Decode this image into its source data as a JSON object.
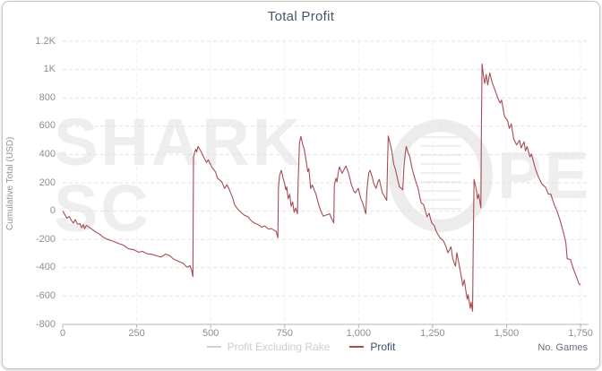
{
  "title": "Total Profit",
  "ylabel": "Cumulative Total (USD)",
  "axis_note": "No. Games",
  "watermark": {
    "part1": "SHARK SC",
    "part2": "PE"
  },
  "legend": [
    {
      "label": "Profit Excluding Rake",
      "color": "#d2d2d2",
      "text_color": "#c9ced4",
      "disabled": true
    },
    {
      "label": "Profit",
      "color": "#a64d52",
      "text_color": "#3d4e66",
      "disabled": false
    }
  ],
  "chart_data": {
    "type": "line",
    "title": "Total Profit",
    "xlabel": "No. Games",
    "ylabel": "Cumulative Total (USD)",
    "xlim": [
      0,
      1777
    ],
    "ylim": [
      -800,
      1200
    ],
    "grid": true,
    "legend_position": "bottom",
    "x_tick_values": [
      0,
      250,
      500,
      750,
      1000,
      1250,
      1500,
      1750
    ],
    "x_tick_labels": [
      "0",
      "250",
      "500",
      "750",
      "1,000",
      "1,250",
      "1,500",
      "1,750"
    ],
    "y_tick_values": [
      1200,
      1000,
      800,
      600,
      400,
      200,
      0,
      -200,
      -400,
      -600,
      -800
    ],
    "y_tick_labels": [
      "1.2K",
      "1K",
      "800",
      "600",
      "400",
      "200",
      "0",
      "-200",
      "-400",
      "-600",
      "-800"
    ],
    "series": [
      {
        "name": "Profit Excluding Rake",
        "color": "#d2d2d2",
        "visible": false,
        "points": []
      },
      {
        "name": "Profit",
        "color": "#a64d52",
        "visible": true,
        "points": [
          [
            0,
            0
          ],
          [
            6,
            -20
          ],
          [
            14,
            -50
          ],
          [
            22,
            -38
          ],
          [
            30,
            -68
          ],
          [
            36,
            -85
          ],
          [
            42,
            -60
          ],
          [
            50,
            -92
          ],
          [
            58,
            -88
          ],
          [
            64,
            -118
          ],
          [
            70,
            -95
          ],
          [
            74,
            -125
          ],
          [
            80,
            -100
          ],
          [
            88,
            -112
          ],
          [
            100,
            -130
          ],
          [
            112,
            -148
          ],
          [
            124,
            -162
          ],
          [
            138,
            -186
          ],
          [
            152,
            -200
          ],
          [
            170,
            -212
          ],
          [
            188,
            -228
          ],
          [
            205,
            -240
          ],
          [
            222,
            -266
          ],
          [
            240,
            -272
          ],
          [
            256,
            -290
          ],
          [
            270,
            -284
          ],
          [
            286,
            -302
          ],
          [
            302,
            -305
          ],
          [
            316,
            -315
          ],
          [
            332,
            -324
          ],
          [
            348,
            -303
          ],
          [
            362,
            -315
          ],
          [
            374,
            -338
          ],
          [
            392,
            -355
          ],
          [
            407,
            -368
          ],
          [
            420,
            -396
          ],
          [
            430,
            -384
          ],
          [
            436,
            -418
          ],
          [
            440,
            -462
          ],
          [
            442,
            380
          ],
          [
            446,
            415
          ],
          [
            450,
            438
          ],
          [
            453,
            417
          ],
          [
            457,
            457
          ],
          [
            466,
            428
          ],
          [
            478,
            374
          ],
          [
            486,
            344
          ],
          [
            492,
            362
          ],
          [
            504,
            310
          ],
          [
            516,
            278
          ],
          [
            523,
            233
          ],
          [
            538,
            206
          ],
          [
            547,
            160
          ],
          [
            555,
            187
          ],
          [
            564,
            147
          ],
          [
            574,
            96
          ],
          [
            581,
            44
          ],
          [
            590,
            18
          ],
          [
            601,
            -6
          ],
          [
            613,
            -28
          ],
          [
            626,
            -40
          ],
          [
            637,
            -68
          ],
          [
            648,
            -84
          ],
          [
            660,
            -95
          ],
          [
            672,
            -114
          ],
          [
            683,
            -104
          ],
          [
            694,
            -126
          ],
          [
            705,
            -124
          ],
          [
            714,
            -134
          ],
          [
            721,
            -142
          ],
          [
            727,
            -188
          ],
          [
            729,
            160
          ],
          [
            733,
            255
          ],
          [
            739,
            288
          ],
          [
            745,
            230
          ],
          [
            749,
            203
          ],
          [
            754,
            150
          ],
          [
            757,
            171
          ],
          [
            762,
            87
          ],
          [
            767,
            119
          ],
          [
            772,
            34
          ],
          [
            777,
            65
          ],
          [
            782,
            -8
          ],
          [
            787,
            23
          ],
          [
            793,
            -19
          ],
          [
            796,
            220
          ],
          [
            800,
            480
          ],
          [
            805,
            527
          ],
          [
            811,
            470
          ],
          [
            816,
            438
          ],
          [
            823,
            348
          ],
          [
            828,
            280
          ],
          [
            832,
            300
          ],
          [
            838,
            160
          ],
          [
            843,
            185
          ],
          [
            849,
            154
          ],
          [
            856,
            118
          ],
          [
            863,
            60
          ],
          [
            871,
            8
          ],
          [
            880,
            -35
          ],
          [
            890,
            -28
          ],
          [
            902,
            -19
          ],
          [
            909,
            -55
          ],
          [
            916,
            -83
          ],
          [
            918,
            180
          ],
          [
            923,
            232
          ],
          [
            927,
            206
          ],
          [
            931,
            268
          ],
          [
            935,
            313
          ],
          [
            944,
            267
          ],
          [
            950,
            290
          ],
          [
            957,
            319
          ],
          [
            966,
            268
          ],
          [
            975,
            190
          ],
          [
            984,
            140
          ],
          [
            989,
            129
          ],
          [
            999,
            161
          ],
          [
            1007,
            92
          ],
          [
            1014,
            55
          ],
          [
            1024,
            -19
          ],
          [
            1028,
            150
          ],
          [
            1034,
            270
          ],
          [
            1039,
            288
          ],
          [
            1045,
            248
          ],
          [
            1052,
            190
          ],
          [
            1059,
            161
          ],
          [
            1066,
            210
          ],
          [
            1070,
            224
          ],
          [
            1080,
            129
          ],
          [
            1088,
            102
          ],
          [
            1095,
            76
          ],
          [
            1098,
            360
          ],
          [
            1100,
            531
          ],
          [
            1107,
            470
          ],
          [
            1112,
            425
          ],
          [
            1119,
            330
          ],
          [
            1124,
            298
          ],
          [
            1131,
            232
          ],
          [
            1138,
            171
          ],
          [
            1144,
            162
          ],
          [
            1149,
            150
          ],
          [
            1153,
            310
          ],
          [
            1157,
            395
          ],
          [
            1161,
            457
          ],
          [
            1168,
            408
          ],
          [
            1173,
            383
          ],
          [
            1181,
            298
          ],
          [
            1191,
            224
          ],
          [
            1201,
            161
          ],
          [
            1211,
            60
          ],
          [
            1220,
            44
          ],
          [
            1231,
            -40
          ],
          [
            1238,
            -15
          ],
          [
            1247,
            -83
          ],
          [
            1256,
            -103
          ],
          [
            1261,
            -135
          ],
          [
            1266,
            -157
          ],
          [
            1275,
            -188
          ],
          [
            1287,
            -210
          ],
          [
            1295,
            -250
          ],
          [
            1302,
            -294
          ],
          [
            1312,
            -252
          ],
          [
            1318,
            -337
          ],
          [
            1327,
            -389
          ],
          [
            1332,
            -294
          ],
          [
            1340,
            -380
          ],
          [
            1347,
            -464
          ],
          [
            1352,
            -527
          ],
          [
            1357,
            -484
          ],
          [
            1362,
            -559
          ],
          [
            1367,
            -622
          ],
          [
            1370,
            -590
          ],
          [
            1377,
            -686
          ],
          [
            1380,
            -643
          ],
          [
            1385,
            -707
          ],
          [
            1388,
            -100
          ],
          [
            1390,
            224
          ],
          [
            1397,
            161
          ],
          [
            1402,
            87
          ],
          [
            1406,
            119
          ],
          [
            1413,
            23
          ],
          [
            1415,
            600
          ],
          [
            1417,
            1039
          ],
          [
            1422,
            955
          ],
          [
            1426,
            902
          ],
          [
            1431,
            965
          ],
          [
            1436,
            891
          ],
          [
            1443,
            976
          ],
          [
            1452,
            905
          ],
          [
            1460,
            860
          ],
          [
            1470,
            800
          ],
          [
            1478,
            764
          ],
          [
            1483,
            785
          ],
          [
            1493,
            668
          ],
          [
            1504,
            637
          ],
          [
            1509,
            584
          ],
          [
            1516,
            616
          ],
          [
            1524,
            510
          ],
          [
            1534,
            468
          ],
          [
            1544,
            500
          ],
          [
            1549,
            446
          ],
          [
            1559,
            489
          ],
          [
            1564,
            425
          ],
          [
            1569,
            457
          ],
          [
            1579,
            383
          ],
          [
            1584,
            404
          ],
          [
            1592,
            340
          ],
          [
            1599,
            288
          ],
          [
            1609,
            235
          ],
          [
            1620,
            190
          ],
          [
            1632,
            168
          ],
          [
            1641,
            120
          ],
          [
            1650,
            119
          ],
          [
            1656,
            76
          ],
          [
            1665,
            25
          ],
          [
            1670,
            2
          ],
          [
            1680,
            -61
          ],
          [
            1690,
            -135
          ],
          [
            1700,
            -220
          ],
          [
            1705,
            -337
          ],
          [
            1716,
            -341
          ],
          [
            1726,
            -411
          ],
          [
            1736,
            -464
          ],
          [
            1744,
            -510
          ],
          [
            1750,
            -523
          ]
        ]
      }
    ]
  }
}
